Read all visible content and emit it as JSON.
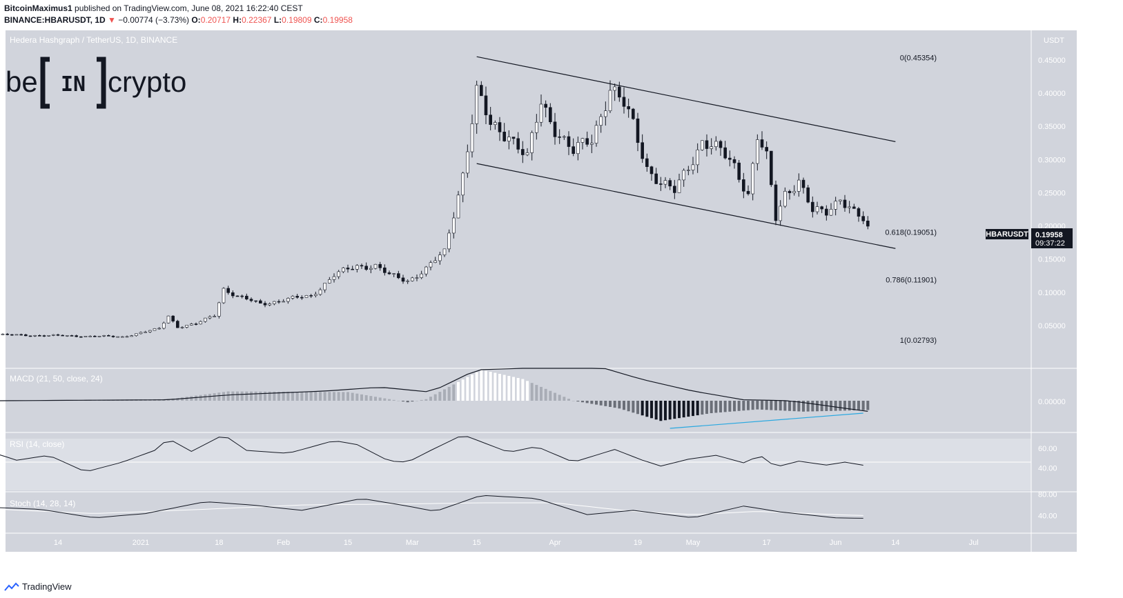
{
  "header": {
    "author": "BitcoinMaximus1",
    "published": "published on TradingView.com, June 08, 2021 16:22:40 CEST",
    "symbol": "BINANCE:HBARUSDT, 1D",
    "change_arrow": "▼",
    "change": "−0.00774 (−3.73%)",
    "o_label": "O:",
    "o_value": "0.20717",
    "h_label": "H:",
    "h_value": "0.22367",
    "l_label": "L:",
    "l_value": "0.19809",
    "c_label": "C:",
    "c_value": "0.19958"
  },
  "footer": {
    "brand": "TradingView"
  },
  "colors": {
    "pane_bg": "#d1d4dc",
    "candle_up": "#ffffff",
    "candle_down": "#131722",
    "divergence": "#29a8e0",
    "price_tag": "#131722"
  },
  "chart_data": [
    {
      "type": "candlestick",
      "title": "Hedera Hashgraph / TetherUS, 1D, BINANCE",
      "watermark": "beincrypto",
      "price_unit": "USDT",
      "last_price_label": "HBARUSDT",
      "last_price": "0.19958",
      "countdown": "09:37:22",
      "x_ticks": [
        {
          "label": "14",
          "date": "2020-12-14"
        },
        {
          "label": "2021",
          "date": "2021-01-01"
        },
        {
          "label": "18",
          "date": "2021-01-18"
        },
        {
          "label": "Feb",
          "date": "2021-02-01"
        },
        {
          "label": "15",
          "date": "2021-02-15"
        },
        {
          "label": "Mar",
          "date": "2021-03-01"
        },
        {
          "label": "15",
          "date": "2021-03-15"
        },
        {
          "label": "Apr",
          "date": "2021-04-01"
        },
        {
          "label": "19",
          "date": "2021-04-19"
        },
        {
          "label": "May",
          "date": "2021-05-01"
        },
        {
          "label": "17",
          "date": "2021-05-17"
        },
        {
          "label": "Jun",
          "date": "2021-06-01"
        },
        {
          "label": "14",
          "date": "2021-06-14"
        },
        {
          "label": "Jul",
          "date": "2021-07-01"
        }
      ],
      "y_ticks": [
        "0.45000",
        "0.40000",
        "0.35000",
        "0.30000",
        "0.25000",
        "0.20000",
        "0.15000",
        "0.10000",
        "0.05000"
      ],
      "y_tick_values": [
        0.45,
        0.4,
        0.35,
        0.3,
        0.25,
        0.2,
        0.15,
        0.1,
        0.05
      ],
      "ylim": [
        0.0,
        0.487
      ],
      "fib_levels": [
        {
          "label": "0(0.45354)",
          "value": 0.45354
        },
        {
          "label": "0.618(0.19051)",
          "value": 0.19051
        },
        {
          "label": "0.786(0.11901)",
          "value": 0.11901
        },
        {
          "label": "1(0.02793)",
          "value": 0.02793
        }
      ],
      "channel_lines": [
        {
          "start": {
            "date": "2021-03-15",
            "price": 0.455
          },
          "end": {
            "date": "2021-06-14",
            "price": 0.327
          }
        },
        {
          "start": {
            "date": "2021-03-15",
            "price": 0.294
          },
          "end": {
            "date": "2021-06-14",
            "price": 0.166
          }
        }
      ],
      "price_path": [
        [
          "2020-12-01",
          0.036
        ],
        [
          "2020-12-10",
          0.035
        ],
        [
          "2020-12-20",
          0.034
        ],
        [
          "2020-12-28",
          0.033
        ],
        [
          "2021-01-05",
          0.045
        ],
        [
          "2021-01-07",
          0.065
        ],
        [
          "2021-01-09",
          0.048
        ],
        [
          "2021-01-13",
          0.052
        ],
        [
          "2021-01-17",
          0.066
        ],
        [
          "2021-01-19",
          0.106
        ],
        [
          "2021-01-22",
          0.093
        ],
        [
          "2021-01-27",
          0.083
        ],
        [
          "2021-02-01",
          0.088
        ],
        [
          "2021-02-07",
          0.095
        ],
        [
          "2021-02-12",
          0.125
        ],
        [
          "2021-02-17",
          0.14
        ],
        [
          "2021-02-21",
          0.14
        ],
        [
          "2021-02-24",
          0.125
        ],
        [
          "2021-02-28",
          0.118
        ],
        [
          "2021-03-04",
          0.135
        ],
        [
          "2021-03-08",
          0.16
        ],
        [
          "2021-03-10",
          0.22
        ],
        [
          "2021-03-12",
          0.28
        ],
        [
          "2021-03-15",
          0.4
        ],
        [
          "2021-03-18",
          0.35
        ],
        [
          "2021-03-22",
          0.34
        ],
        [
          "2021-03-26",
          0.3
        ],
        [
          "2021-03-29",
          0.385
        ],
        [
          "2021-04-01",
          0.35
        ],
        [
          "2021-04-05",
          0.31
        ],
        [
          "2021-04-09",
          0.33
        ],
        [
          "2021-04-13",
          0.41
        ],
        [
          "2021-04-16",
          0.38
        ],
        [
          "2021-04-18",
          0.35
        ],
        [
          "2021-04-21",
          0.29
        ],
        [
          "2021-04-24",
          0.265
        ],
        [
          "2021-04-27",
          0.25
        ],
        [
          "2021-04-30",
          0.29
        ],
        [
          "2021-05-03",
          0.33
        ],
        [
          "2021-05-07",
          0.31
        ],
        [
          "2021-05-10",
          0.29
        ],
        [
          "2021-05-13",
          0.25
        ],
        [
          "2021-05-15",
          0.335
        ],
        [
          "2021-05-17",
          0.3
        ],
        [
          "2021-05-19",
          0.21
        ],
        [
          "2021-05-21",
          0.25
        ],
        [
          "2021-05-24",
          0.27
        ],
        [
          "2021-05-27",
          0.22
        ],
        [
          "2021-05-30",
          0.22
        ],
        [
          "2021-06-02",
          0.245
        ],
        [
          "2021-06-05",
          0.22
        ],
        [
          "2021-06-08",
          0.1996
        ]
      ]
    },
    {
      "type": "macd",
      "title": "MACD (21, 50, close, 24)",
      "y_ticks": [
        "0.00000"
      ],
      "divergence_line": {
        "start_date": "2021-04-26",
        "end_date": "2021-06-07"
      },
      "histogram_path": [
        [
          "2020-12-01",
          0.0
        ],
        [
          "2021-01-07",
          0.05
        ],
        [
          "2021-01-20",
          0.3
        ],
        [
          "2021-02-15",
          0.28
        ],
        [
          "2021-02-28",
          -0.05
        ],
        [
          "2021-03-04",
          0.05
        ],
        [
          "2021-03-16",
          1.0
        ],
        [
          "2021-03-25",
          0.7
        ],
        [
          "2021-04-05",
          0.0
        ],
        [
          "2021-04-15",
          -0.25
        ],
        [
          "2021-04-24",
          -0.65
        ],
        [
          "2021-05-05",
          -0.4
        ],
        [
          "2021-05-15",
          -0.28
        ],
        [
          "2021-05-25",
          -0.35
        ],
        [
          "2021-06-08",
          -0.3
        ]
      ],
      "macd_path": [
        [
          "2020-12-01",
          0.0
        ],
        [
          "2021-01-07",
          0.05
        ],
        [
          "2021-01-20",
          0.3
        ],
        [
          "2021-02-10",
          0.5
        ],
        [
          "2021-02-22",
          0.7
        ],
        [
          "2021-03-05",
          0.45
        ],
        [
          "2021-03-15",
          1.6
        ],
        [
          "2021-04-10",
          1.8
        ],
        [
          "2021-04-20",
          1.1
        ],
        [
          "2021-05-01",
          0.5
        ],
        [
          "2021-05-12",
          0.05
        ],
        [
          "2021-05-22",
          0.0
        ],
        [
          "2021-06-08",
          -0.55
        ]
      ]
    },
    {
      "type": "line",
      "title": "RSI (14, close)",
      "y_ticks": [
        "60.00",
        "40.00"
      ],
      "y_tick_values": [
        60,
        40
      ],
      "ylim": [
        17,
        75
      ],
      "values_path": [
        [
          "2020-12-01",
          54
        ],
        [
          "2020-12-05",
          48
        ],
        [
          "2020-12-12",
          53
        ],
        [
          "2020-12-20",
          36
        ],
        [
          "2020-12-28",
          46
        ],
        [
          "2021-01-04",
          58
        ],
        [
          "2021-01-07",
          70
        ],
        [
          "2021-01-12",
          57
        ],
        [
          "2021-01-19",
          74
        ],
        [
          "2021-01-24",
          58
        ],
        [
          "2021-02-02",
          55
        ],
        [
          "2021-02-12",
          68
        ],
        [
          "2021-02-17",
          64
        ],
        [
          "2021-02-24",
          47
        ],
        [
          "2021-02-28",
          46
        ],
        [
          "2021-03-05",
          58
        ],
        [
          "2021-03-12",
          74
        ],
        [
          "2021-03-22",
          56
        ],
        [
          "2021-03-28",
          62
        ],
        [
          "2021-04-05",
          46
        ],
        [
          "2021-04-14",
          59
        ],
        [
          "2021-04-20",
          48
        ],
        [
          "2021-04-24",
          42
        ],
        [
          "2021-04-30",
          49
        ],
        [
          "2021-05-06",
          53
        ],
        [
          "2021-05-13",
          44
        ],
        [
          "2021-05-15",
          55
        ],
        [
          "2021-05-19",
          41
        ],
        [
          "2021-05-24",
          47
        ],
        [
          "2021-05-30",
          43
        ],
        [
          "2021-06-03",
          46
        ],
        [
          "2021-06-08",
          42
        ]
      ]
    },
    {
      "type": "line",
      "title": "Stoch (14, 28, 14)",
      "y_ticks": [
        "80.00",
        "40.00"
      ],
      "y_tick_values": [
        80,
        40
      ],
      "ylim": [
        10,
        82
      ],
      "k_path": [
        [
          "2020-12-01",
          55
        ],
        [
          "2020-12-10",
          52
        ],
        [
          "2020-12-22",
          36
        ],
        [
          "2021-01-02",
          44
        ],
        [
          "2021-01-15",
          66
        ],
        [
          "2021-01-25",
          60
        ],
        [
          "2021-02-05",
          50
        ],
        [
          "2021-02-18",
          72
        ],
        [
          "2021-02-28",
          58
        ],
        [
          "2021-03-06",
          48
        ],
        [
          "2021-03-16",
          78
        ],
        [
          "2021-03-28",
          72
        ],
        [
          "2021-04-08",
          42
        ],
        [
          "2021-04-18",
          50
        ],
        [
          "2021-05-01",
          36
        ],
        [
          "2021-05-12",
          58
        ],
        [
          "2021-05-20",
          47
        ],
        [
          "2021-06-01",
          36
        ],
        [
          "2021-06-08",
          35
        ]
      ],
      "d_path": [
        [
          "2020-12-01",
          52
        ],
        [
          "2020-12-22",
          44
        ],
        [
          "2021-01-15",
          52
        ],
        [
          "2021-02-05",
          60
        ],
        [
          "2021-02-28",
          62
        ],
        [
          "2021-03-16",
          64
        ],
        [
          "2021-04-01",
          64
        ],
        [
          "2021-04-18",
          48
        ],
        [
          "2021-05-01",
          42
        ],
        [
          "2021-05-15",
          48
        ],
        [
          "2021-06-01",
          42
        ],
        [
          "2021-06-08",
          40
        ]
      ]
    }
  ]
}
